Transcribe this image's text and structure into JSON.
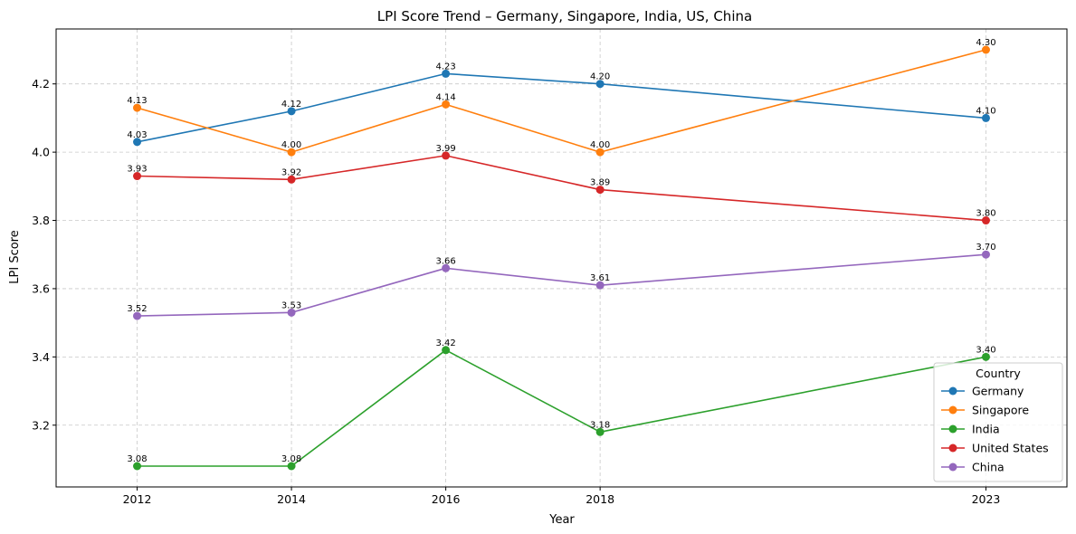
{
  "chart_data": {
    "type": "line",
    "title": "LPI Score Trend – Germany, Singapore, India, US, China",
    "xlabel": "Year",
    "ylabel": "LPI Score",
    "x": [
      2012,
      2014,
      2016,
      2018,
      2023
    ],
    "x_tick_labels": [
      "2012",
      "2014",
      "2016",
      "2018",
      "2023"
    ],
    "y_ticks": [
      3.2,
      3.4,
      3.6,
      3.8,
      4.0,
      4.2
    ],
    "y_tick_labels": [
      "3.2",
      "3.4",
      "3.6",
      "3.8",
      "4.0",
      "4.2"
    ],
    "xlim": [
      2010.95,
      2024.05
    ],
    "ylim": [
      3.019,
      4.361
    ],
    "grid": true,
    "legend": {
      "title": "Country",
      "placement": "lower-right"
    },
    "series": [
      {
        "name": "Germany",
        "color": "#1f77b4",
        "values": [
          4.03,
          4.12,
          4.23,
          4.2,
          4.1
        ],
        "labels": [
          "4.03",
          "4.12",
          "4.23",
          "4.20",
          "4.10"
        ]
      },
      {
        "name": "Singapore",
        "color": "#ff7f0e",
        "values": [
          4.13,
          4.0,
          4.14,
          4.0,
          4.3
        ],
        "labels": [
          "4.13",
          "4.00",
          "4.14",
          "4.00",
          "4.30"
        ]
      },
      {
        "name": "India",
        "color": "#2ca02c",
        "values": [
          3.08,
          3.08,
          3.42,
          3.18,
          3.4
        ],
        "labels": [
          "3.08",
          "3.08",
          "3.42",
          "3.18",
          "3.40"
        ]
      },
      {
        "name": "United States",
        "color": "#d62728",
        "values": [
          3.93,
          3.92,
          3.99,
          3.89,
          3.8
        ],
        "labels": [
          "3.93",
          "3.92",
          "3.99",
          "3.89",
          "3.80"
        ]
      },
      {
        "name": "China",
        "color": "#9467bd",
        "values": [
          3.52,
          3.53,
          3.66,
          3.61,
          3.7
        ],
        "labels": [
          "3.52",
          "3.53",
          "3.66",
          "3.61",
          "3.70"
        ]
      }
    ]
  }
}
